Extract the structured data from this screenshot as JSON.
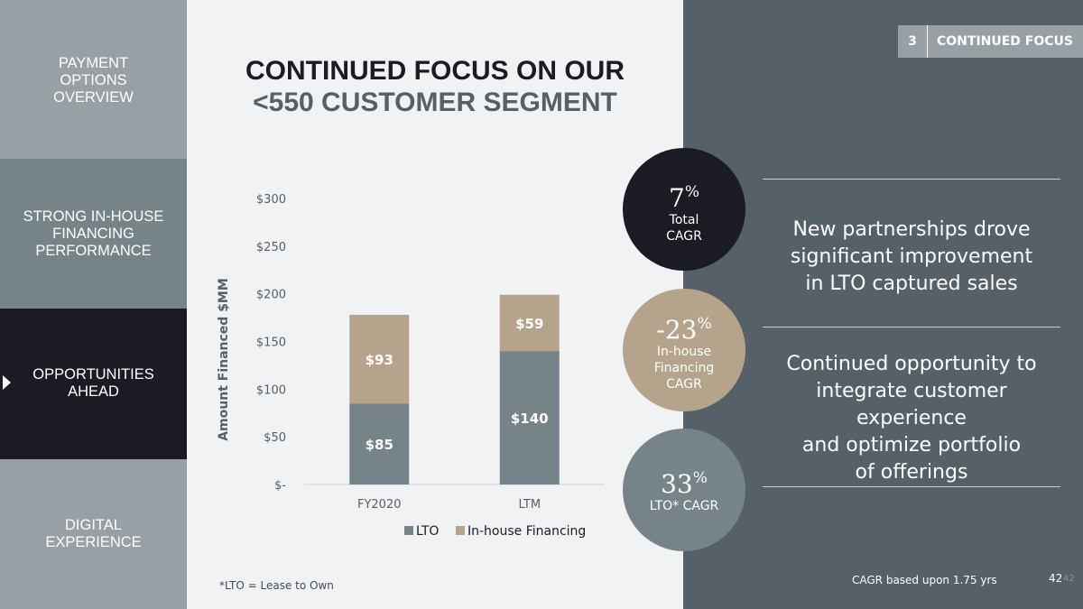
{
  "nav": {
    "items": [
      {
        "lines": [
          "PAYMENT",
          "OPTIONS",
          "OVERVIEW"
        ]
      },
      {
        "lines": [
          "STRONG IN-HOUSE",
          "FINANCING",
          "PERFORMANCE"
        ]
      },
      {
        "lines": [
          "OPPORTUNITIES",
          "AHEAD"
        ]
      },
      {
        "lines": [
          "DIGITAL",
          "EXPERIENCE"
        ]
      }
    ]
  },
  "section": {
    "number": "3",
    "label": "CONTINUED FOCUS"
  },
  "title": {
    "line1": "CONTINUED FOCUS ON OUR",
    "line2": "<550 CUSTOMER SEGMENT"
  },
  "chart_data": {
    "type": "bar",
    "stacked": true,
    "categories": [
      "FY2020",
      "LTM"
    ],
    "series": [
      {
        "name": "LTO",
        "values": [
          85,
          140
        ],
        "labels": [
          "$85",
          "$140"
        ],
        "color": "#76848a"
      },
      {
        "name": "In-house Financing",
        "values": [
          93,
          59
        ],
        "labels": [
          "$93",
          "$59"
        ],
        "color": "#b5a48b"
      }
    ],
    "ylabel": "Amount Financed $MM",
    "ylim": [
      0,
      300
    ],
    "yticks": [
      0,
      50,
      100,
      150,
      200,
      250,
      300
    ],
    "ytick_labels": [
      "$-",
      "$50",
      "$100",
      "$150",
      "$200",
      "$250",
      "$300"
    ],
    "legend": "bottom"
  },
  "circles": [
    {
      "value": "7",
      "unit": "%",
      "lines": [
        "Total",
        "CAGR"
      ]
    },
    {
      "value": "-23",
      "unit": "%",
      "lines": [
        "In-house",
        "Financing",
        "CAGR"
      ]
    },
    {
      "value": "33",
      "unit": "%",
      "lines": [
        "LTO* CAGR"
      ]
    }
  ],
  "messages": [
    {
      "lines": [
        "New partnerships drove",
        "significant improvement",
        "in LTO captured sales"
      ]
    },
    {
      "lines": [
        "Continued opportunity to",
        "integrate customer experience",
        "and optimize portfolio",
        "of offerings"
      ]
    }
  ],
  "footnote": "*LTO = Lease to Own",
  "cagr_note": "CAGR based upon 1.75 yrs",
  "page_number": "42",
  "colors": {
    "dark": "#1b1b26",
    "slate": "#566069",
    "gray": "#989fa5",
    "tan": "#b5a48b",
    "steel": "#76848a"
  }
}
